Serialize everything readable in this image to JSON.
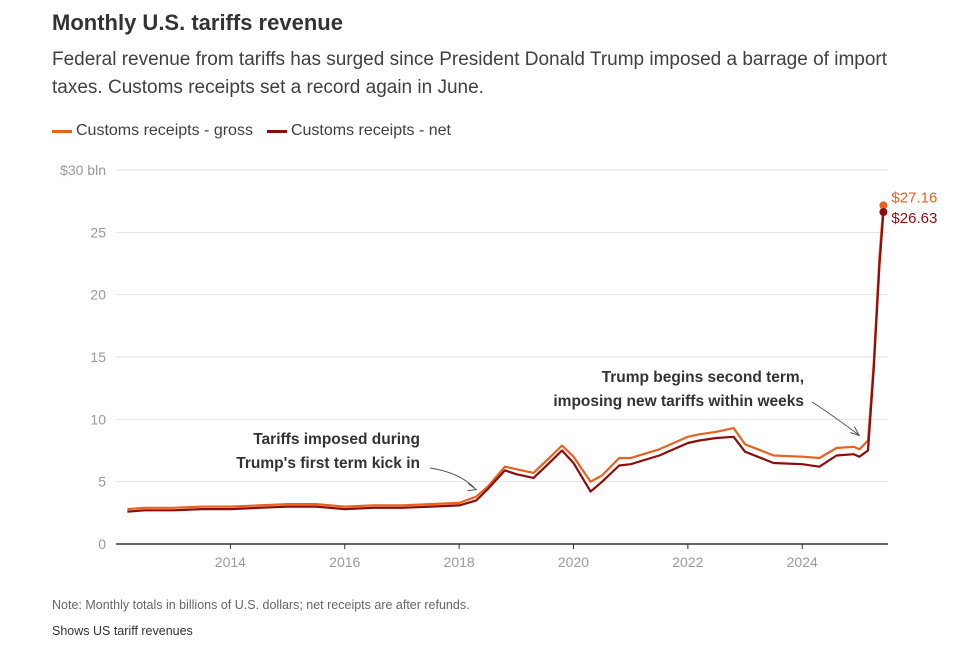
{
  "header": {
    "title": "Monthly U.S. tariffs revenue",
    "subtitle": "Federal revenue from tariffs has surged since President Donald Trump imposed a barrage of import taxes. Customs receipts set a record again in June."
  },
  "legend": {
    "gross_label": "Customs receipts - gross",
    "net_label": "Customs receipts - net"
  },
  "colors": {
    "gross": "#e8611f",
    "net": "#8b0d0d",
    "grid": "#e2e2e2",
    "axis": "#333333"
  },
  "chart_data": {
    "type": "line",
    "title": "Monthly U.S. tariffs revenue",
    "xlabel": "",
    "ylabel": "$ bln",
    "ylim": [
      0,
      30
    ],
    "xlim": [
      2012.0,
      2025.5
    ],
    "y_ticks": [
      {
        "value": 0,
        "label": "0"
      },
      {
        "value": 5,
        "label": "5"
      },
      {
        "value": 10,
        "label": "10"
      },
      {
        "value": 15,
        "label": "15"
      },
      {
        "value": 20,
        "label": "20"
      },
      {
        "value": 25,
        "label": "25"
      },
      {
        "value": 30,
        "label": "$30 bln"
      }
    ],
    "x_ticks": [
      {
        "value": 2014,
        "label": "2014"
      },
      {
        "value": 2016,
        "label": "2016"
      },
      {
        "value": 2018,
        "label": "2018"
      },
      {
        "value": 2020,
        "label": "2020"
      },
      {
        "value": 2022,
        "label": "2022"
      },
      {
        "value": 2024,
        "label": "2024"
      }
    ],
    "series": [
      {
        "name": "Customs receipts - gross",
        "x": [
          2012.2,
          2012.5,
          2013.0,
          2013.5,
          2014.0,
          2014.5,
          2015.0,
          2015.5,
          2016.0,
          2016.5,
          2017.0,
          2017.5,
          2018.0,
          2018.3,
          2018.5,
          2018.8,
          2019.0,
          2019.3,
          2019.6,
          2019.8,
          2020.0,
          2020.3,
          2020.5,
          2020.8,
          2021.0,
          2021.5,
          2022.0,
          2022.2,
          2022.5,
          2022.8,
          2023.0,
          2023.5,
          2024.0,
          2024.3,
          2024.6,
          2024.9,
          2025.0,
          2025.15,
          2025.25,
          2025.35,
          2025.42
        ],
        "values": [
          2.8,
          2.9,
          2.9,
          3.0,
          3.0,
          3.1,
          3.2,
          3.2,
          3.0,
          3.1,
          3.1,
          3.2,
          3.3,
          3.8,
          4.6,
          6.2,
          6.0,
          5.7,
          7.0,
          7.9,
          7.0,
          5.0,
          5.5,
          6.9,
          6.9,
          7.6,
          8.6,
          8.8,
          9.0,
          9.3,
          8.0,
          7.1,
          7.0,
          6.9,
          7.7,
          7.8,
          7.6,
          8.3,
          14.5,
          23.0,
          27.16
        ]
      },
      {
        "name": "Customs receipts - net",
        "x": [
          2012.2,
          2012.5,
          2013.0,
          2013.5,
          2014.0,
          2014.5,
          2015.0,
          2015.5,
          2016.0,
          2016.5,
          2017.0,
          2017.5,
          2018.0,
          2018.3,
          2018.5,
          2018.8,
          2019.0,
          2019.3,
          2019.6,
          2019.8,
          2020.0,
          2020.3,
          2020.5,
          2020.8,
          2021.0,
          2021.5,
          2022.0,
          2022.2,
          2022.5,
          2022.8,
          2023.0,
          2023.5,
          2024.0,
          2024.3,
          2024.6,
          2024.9,
          2025.0,
          2025.15,
          2025.25,
          2025.35,
          2025.42
        ],
        "values": [
          2.6,
          2.7,
          2.7,
          2.8,
          2.8,
          2.9,
          3.0,
          3.0,
          2.8,
          2.9,
          2.9,
          3.0,
          3.1,
          3.5,
          4.4,
          5.9,
          5.6,
          5.3,
          6.6,
          7.5,
          6.5,
          4.2,
          5.0,
          6.3,
          6.4,
          7.1,
          8.1,
          8.3,
          8.5,
          8.6,
          7.4,
          6.5,
          6.4,
          6.2,
          7.1,
          7.2,
          7.0,
          7.5,
          14.0,
          22.3,
          26.63
        ]
      }
    ],
    "end_labels": [
      {
        "series": "Customs receipts - gross",
        "label": "$27.16"
      },
      {
        "series": "Customs receipts - net",
        "label": "$26.63"
      }
    ],
    "annotations": [
      {
        "lines": [
          "Tariffs imposed during",
          "Trump's first term kick in"
        ],
        "x": 2018.3,
        "y": 4.2
      },
      {
        "lines": [
          "Trump begins second term,",
          "imposing new tariffs within weeks"
        ],
        "x": 2025.05,
        "y": 8.3
      }
    ]
  },
  "footer": {
    "note": "Note: Monthly totals in billions of U.S. dollars; net receipts are after refunds.",
    "source": "Shows US tariff revenues"
  }
}
